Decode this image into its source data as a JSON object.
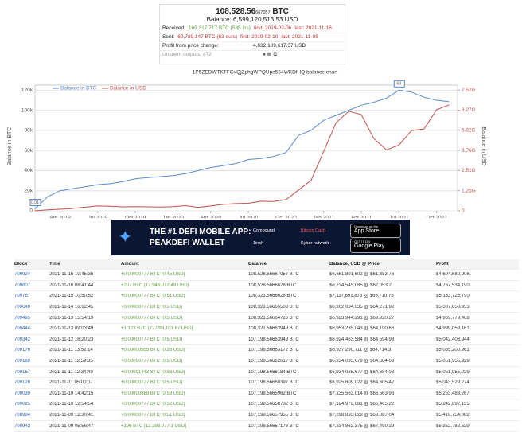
{
  "summary": {
    "btc_main": "108,528.56",
    "btc_small": "667057",
    "btc_unit": "BTC",
    "balance_usd": "Balance: 6,599,120,513.53 USD",
    "received": {
      "label": "Received:",
      "amount": "169,317.717 BTC (535 ins)",
      "first": "first: 2019-02-06",
      "last": "last: 2021-11-16"
    },
    "sent": {
      "label": "Sent:",
      "amount": "60,789.147 BTC (63 outs)",
      "first": "first: 2019-02-10",
      "last": "last: 2021-11-08"
    },
    "profit": {
      "label": "Profit from price change:",
      "value": "4,632,109,617.37 USD"
    },
    "unspent": "Unspent outputs: 472"
  },
  "chart_data": {
    "type": "line",
    "title": "1P5ZEDWTKTFGxQjZphgWPQUpe554WKDfHQ balance chart",
    "ylabel": "Balance in BTC",
    "y2label": "Balance in USD",
    "x": [
      "2019-02",
      "2019-03",
      "2019-04",
      "2019-05",
      "2019-06",
      "2019-07",
      "2019-08",
      "2019-09",
      "2019-10",
      "2019-11",
      "2019-12",
      "2020-01",
      "2020-02",
      "2020-03",
      "2020-04",
      "2020-05",
      "2020-06",
      "2020-07",
      "2020-08",
      "2020-09",
      "2020-10",
      "2020-11",
      "2020-12",
      "2021-01",
      "2021-02",
      "2021-03",
      "2021-04",
      "2021-05",
      "2021-06",
      "2021-07",
      "2021-08",
      "2021-09",
      "2021-10",
      "2021-11"
    ],
    "series": [
      {
        "name": "Balance in BTC",
        "color": "#5b8bd0",
        "values": [
          2000,
          14000,
          20000,
          22000,
          24000,
          26000,
          27000,
          29000,
          32000,
          33000,
          34000,
          35000,
          37000,
          40000,
          43000,
          45000,
          47000,
          51000,
          52000,
          54000,
          58000,
          75000,
          80000,
          90000,
          95000,
          100000,
          105000,
          108000,
          112000,
          120000,
          118000,
          113000,
          110000,
          108500
        ]
      },
      {
        "name": "Balance in USD",
        "color": "#c0504d",
        "axis": "y2",
        "values": [
          0,
          60000000,
          100000000,
          150000000,
          230000000,
          300000000,
          280000000,
          250000000,
          260000000,
          250000000,
          240000000,
          260000000,
          320000000,
          220000000,
          300000000,
          400000000,
          450000000,
          470000000,
          600000000,
          580000000,
          700000000,
          1300000000,
          1900000000,
          3700000000,
          5500000000,
          6200000000,
          6000000000,
          4500000000,
          3800000000,
          4100000000,
          5000000000,
          5100000000,
          6300000000,
          6600000000
        ]
      }
    ],
    "ylim": [
      0,
      125000
    ],
    "yticks": [
      0,
      {
        "value": 20000,
        "label": "20k"
      },
      {
        "value": 40000,
        "label": "40k"
      },
      {
        "value": 60000,
        "label": "60k"
      },
      {
        "value": 80000,
        "label": "80k"
      },
      {
        "value": 100000,
        "label": "100k"
      },
      {
        "value": 120000,
        "label": "120k"
      }
    ],
    "y2lim": [
      0,
      7830000000
    ],
    "y2ticks": [
      0,
      {
        "value": 1250000000,
        "label": "1.25G"
      },
      {
        "value": 2510000000,
        "label": "2.51G"
      },
      {
        "value": 3760000000,
        "label": "3.76G"
      },
      {
        "value": 5020000000,
        "label": "5.02G"
      },
      {
        "value": 6270000000,
        "label": "6.27G"
      },
      {
        "value": 7520000000,
        "label": "7.52G"
      }
    ],
    "xticks": [
      {
        "value": "2019-04",
        "label": "Apr 2019"
      },
      {
        "value": "2019-07",
        "label": "Jul 2019"
      },
      {
        "value": "2019-10",
        "label": "Oct 2019"
      },
      {
        "value": "2020-01",
        "label": "Jan 2020"
      },
      {
        "value": "2020-04",
        "label": "Apr 2020"
      },
      {
        "value": "2020-07",
        "label": "Jul 2020"
      },
      {
        "value": "2020-10",
        "label": "Oct 2020"
      },
      {
        "value": "2021-01",
        "label": "Jan 2021"
      },
      {
        "value": "2021-04",
        "label": "Apr 2021"
      },
      {
        "value": "2021-07",
        "label": "Jul 2021"
      },
      {
        "value": "2021-10",
        "label": "Oct 2021"
      }
    ],
    "grid": true,
    "annotations": [
      "0.01",
      "63"
    ]
  },
  "banner": {
    "headline": "THE #1 DEFI MOBILE APP:",
    "subline": "PEAKDEFI WALLET",
    "partners": [
      "Compound",
      "Bitcoin Cash",
      "1inch",
      "Kyber network"
    ],
    "store1_small": "Download on the",
    "store1": "App Store",
    "store2_small": "GET IT ON",
    "store2": "Google Play"
  },
  "table": {
    "header": [
      "Block",
      "Time",
      "Amount",
      "Balance",
      "Balance, USD @ Price",
      "Profit"
    ],
    "rows": [
      [
        "709924",
        "2021-11-16 10:45:36",
        "+0.00000777 BTC (0.45 USD)",
        "108,528.56667057 BTC",
        "$6,661,891,602 @ $61,383.76",
        "$4,694,680,906"
      ],
      [
        "709807",
        "2021-11-16 08:41:44",
        "+207 BTC (12,946,012.49 USD)",
        "108,528.5666628 BTC",
        "$6,734,545,085 @ $62,053.2",
        "$4,767,534,190"
      ],
      [
        "709787",
        "2021-11-15 10:50:52",
        "+0.00000777 BTC (0.51 USD)",
        "108,321.5666628 BTC",
        "$7,117,691,873 @ $65,710.75",
        "$5,163,725,790"
      ],
      [
        "709649",
        "2021-11-14 16:12:45",
        "+0.00000777 BTC (0.5 USD)",
        "108,321.56665503 BTC",
        "$6,962,034,635 @ $64,271.92",
        "$5,007,858,953"
      ],
      [
        "709495",
        "2021-11-13 15:54:19",
        "+0.00000777 BTC (0.5 USD)",
        "108,321.56664726 BTC",
        "$6,923,944,291 @ $63,920.27",
        "$4,969,779,408"
      ],
      [
        "709444",
        "2021-11-13 09:03:49",
        "+1,123 BTC (72,098,101.87 USD)",
        "108,321.56663949 BTC",
        "$6,953,235,043 @ $64,190.66",
        "$4,999,059,161"
      ],
      [
        "709342",
        "2021-11-12 16:20:23",
        "+0.00000777 BTC (0.5 USD)",
        "107,198.56663949 BTC",
        "$6,924,463,584 @ $64,594.93",
        "$5,042,403,944"
      ],
      [
        "709176",
        "2021-11-11 13:52:14",
        "+0.00000555 BTC (0.36 USD)",
        "107,198.56663172 BTC",
        "$6,937,290,711 @ $64,714.3",
        "$5,055,200,961"
      ],
      [
        "709169",
        "2021-11-11 12:59:35",
        "+0.00000777 BTC (0.5 USD)",
        "107,198.56662617 BTC",
        "$6,934,035,679 @ $64,684.03",
        "$5,051,955,929"
      ],
      [
        "709167",
        "2021-11-11 12:34:49",
        "+0.00001443 BTC (0.93 USD)",
        "107,198.5666184 BTC",
        "$6,934,035,677 @ $64,684.03",
        "$5,051,955,929"
      ],
      [
        "709128",
        "2021-11-11 05:00:07",
        "+0.00000777 BTC (0.5 USD)",
        "107,198.56660397 BTC",
        "$6,925,609,022 @ $64,605.42",
        "$5,043,529,274"
      ],
      [
        "709030",
        "2021-11-10 14:42:15",
        "+0.00000888 BTC (0.59 USD)",
        "107,198.5665962 BTC",
        "$7,135,563,014 @ $66,563.96",
        "$5,253,483,267"
      ],
      [
        "709025",
        "2021-11-10 12:54:54",
        "+0.00000777 BTC (0.52 USD)",
        "107,198.56658732 BTC",
        "$7,124,976,681 @ $66,465.22",
        "$5,242,897,135"
      ],
      [
        "708984",
        "2021-11-09 12:30:41",
        "+0.00000777 BTC (0.51 USD)",
        "107,198.56657955 BTC",
        "$7,298,833,828 @ $68,087.04",
        "$5,416,754,082"
      ],
      [
        "708943",
        "2021-11-09 05:56:47",
        "+196 BTC (13,393,077.1 USD)",
        "107,198.56657178 BTC",
        "$7,234,862,375 @ $67,490.29",
        "$5,352,782,629"
      ]
    ]
  }
}
